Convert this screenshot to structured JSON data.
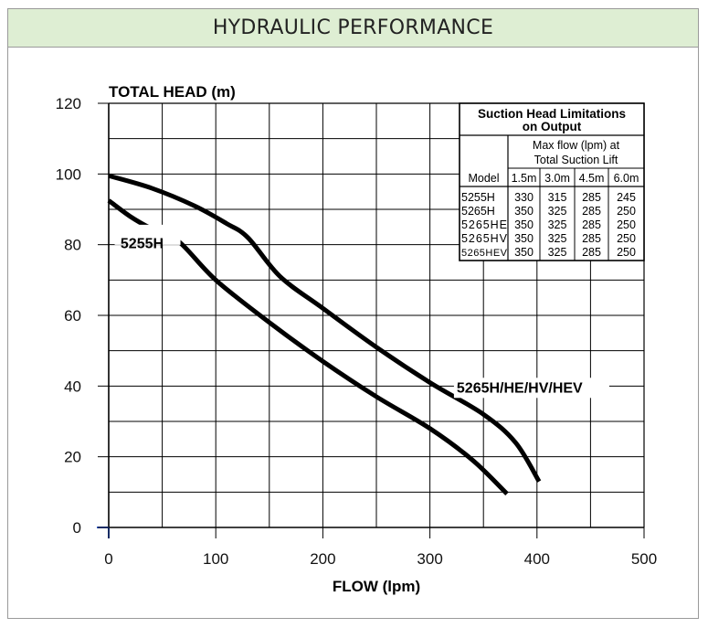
{
  "banner": {
    "title": "HYDRAULIC PERFORMANCE"
  },
  "chart_data": {
    "type": "line",
    "title": "",
    "xlabel": "FLOW (lpm)",
    "ylabel": "TOTAL HEAD (m)",
    "xlim": [
      0,
      500
    ],
    "ylim": [
      0,
      120
    ],
    "x_ticks": [
      0,
      100,
      200,
      300,
      400,
      500
    ],
    "y_ticks": [
      0,
      20,
      40,
      60,
      80,
      100,
      120
    ],
    "grid": true,
    "series": [
      {
        "name": "5255H",
        "x": [
          0,
          20,
          40,
          65,
          100,
          150,
          200,
          250,
          300,
          340,
          372
        ],
        "y": [
          92.5,
          88,
          84.5,
          81,
          70,
          58,
          47,
          37,
          28,
          19,
          9.5
        ]
      },
      {
        "name": "5265H/HE/HV/HEV",
        "x": [
          0,
          40,
          80,
          110,
          130,
          160,
          200,
          250,
          300,
          350,
          380,
          402
        ],
        "y": [
          99.5,
          96,
          91,
          86,
          82,
          71,
          62,
          51,
          41,
          32,
          24,
          13
        ]
      }
    ],
    "table": {
      "title_line1": "Suction Head Limitations",
      "title_line2": "on Output",
      "subhead_line1": "Max flow (lpm) at",
      "subhead_line2": "Total Suction Lift",
      "columns": [
        "Model",
        "1.5m",
        "3.0m",
        "4.5m",
        "6.0m"
      ],
      "rows": [
        [
          "5255H",
          "330",
          "315",
          "285",
          "245"
        ],
        [
          "5265H",
          "350",
          "325",
          "285",
          "250"
        ],
        [
          "5265HE",
          "350",
          "325",
          "285",
          "250"
        ],
        [
          "5265HV",
          "350",
          "325",
          "285",
          "250"
        ],
        [
          "5265HEV",
          "350",
          "325",
          "285",
          "250"
        ]
      ]
    }
  }
}
